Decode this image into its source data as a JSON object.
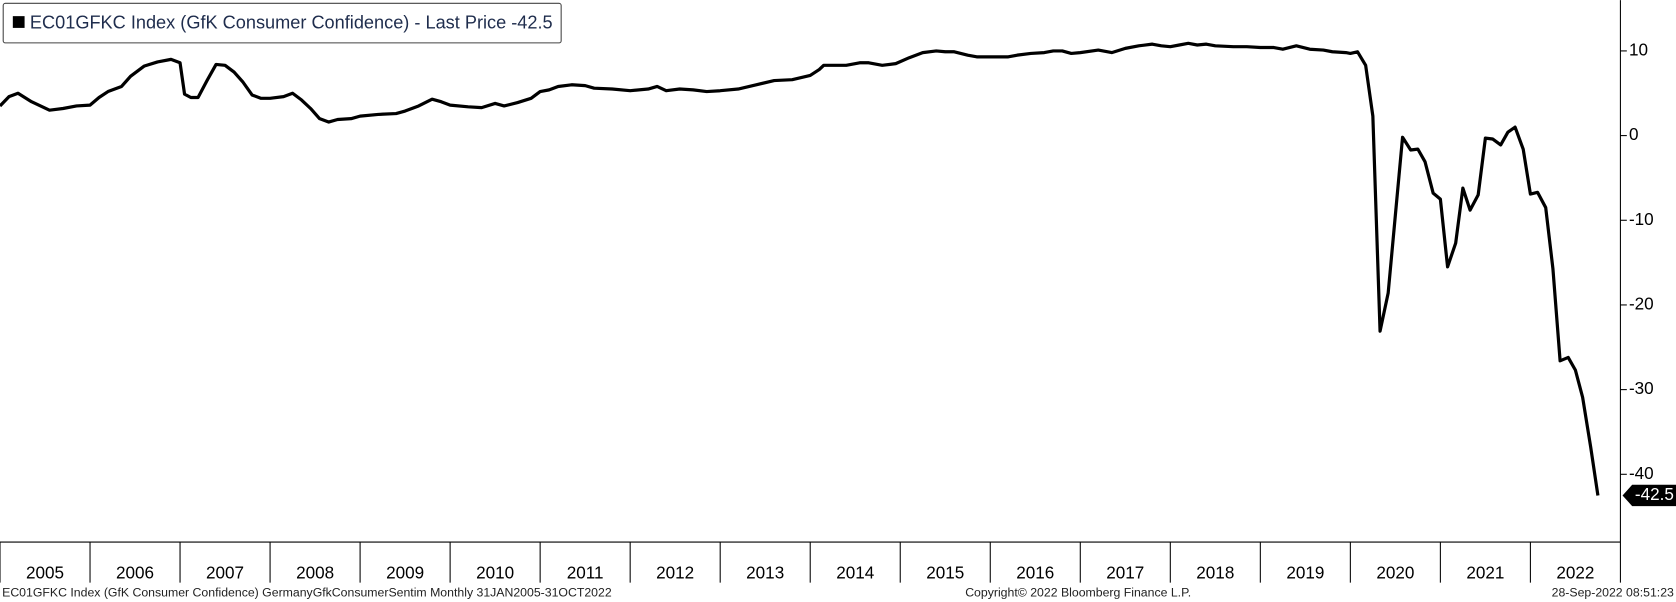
{
  "chart_data": {
    "type": "line",
    "series": [
      {
        "name": "EC01GFKC Index (GfK Consumer Confidence) - Last Price -42.5",
        "color": "#000000",
        "x": [
          2005.0,
          2005.1,
          2005.2,
          2005.35,
          2005.55,
          2005.7,
          2005.85,
          2006.0,
          2006.1,
          2006.2,
          2006.35,
          2006.45,
          2006.6,
          2006.75,
          2006.9,
          2007.0,
          2007.05,
          2007.12,
          2007.2,
          2007.3,
          2007.4,
          2007.5,
          2007.6,
          2007.7,
          2007.8,
          2007.9,
          2008.0,
          2008.15,
          2008.25,
          2008.35,
          2008.45,
          2008.55,
          2008.65,
          2008.75,
          2008.9,
          2009.0,
          2009.2,
          2009.4,
          2009.5,
          2009.65,
          2009.8,
          2009.9,
          2010.0,
          2010.2,
          2010.35,
          2010.5,
          2010.6,
          2010.75,
          2010.9,
          2011.0,
          2011.1,
          2011.2,
          2011.35,
          2011.5,
          2011.6,
          2011.8,
          2012.0,
          2012.2,
          2012.3,
          2012.4,
          2012.55,
          2012.7,
          2012.85,
          2013.0,
          2013.2,
          2013.4,
          2013.6,
          2013.8,
          2014.0,
          2014.1,
          2014.15,
          2014.4,
          2014.55,
          2014.65,
          2014.8,
          2014.95,
          2015.1,
          2015.25,
          2015.4,
          2015.5,
          2015.6,
          2015.75,
          2015.85,
          2016.0,
          2016.2,
          2016.3,
          2016.45,
          2016.6,
          2016.7,
          2016.8,
          2016.9,
          2017.0,
          2017.2,
          2017.35,
          2017.5,
          2017.65,
          2017.8,
          2017.9,
          2018.0,
          2018.1,
          2018.2,
          2018.3,
          2018.4,
          2018.5,
          2018.7,
          2018.85,
          2019.0,
          2019.15,
          2019.25,
          2019.4,
          2019.55,
          2019.7,
          2019.8,
          2019.95,
          2020.0,
          2020.08,
          2020.17,
          2020.25,
          2020.33,
          2020.42,
          2020.5,
          2020.58,
          2020.67,
          2020.75,
          2020.83,
          2020.92,
          2021.0,
          2021.08,
          2021.17,
          2021.25,
          2021.33,
          2021.42,
          2021.5,
          2021.58,
          2021.67,
          2021.75,
          2021.83,
          2021.92,
          2022.0,
          2022.08,
          2022.17,
          2022.25,
          2022.33,
          2022.42,
          2022.5,
          2022.58,
          2022.67,
          2022.75
        ],
        "values": [
          3.5,
          4.6,
          5.0,
          4.0,
          3.0,
          3.2,
          3.5,
          3.6,
          4.5,
          5.2,
          5.8,
          7.0,
          8.2,
          8.7,
          9.0,
          8.6,
          4.9,
          4.5,
          4.5,
          6.5,
          8.4,
          8.3,
          7.5,
          6.3,
          4.8,
          4.4,
          4.4,
          4.6,
          5.0,
          4.2,
          3.2,
          2.0,
          1.6,
          1.9,
          2.0,
          2.3,
          2.5,
          2.6,
          2.9,
          3.5,
          4.3,
          4.0,
          3.6,
          3.4,
          3.3,
          3.8,
          3.5,
          3.9,
          4.4,
          5.2,
          5.4,
          5.8,
          6.0,
          5.9,
          5.6,
          5.5,
          5.3,
          5.5,
          5.8,
          5.3,
          5.5,
          5.4,
          5.2,
          5.3,
          5.5,
          6.0,
          6.5,
          6.6,
          7.1,
          7.8,
          8.3,
          8.3,
          8.6,
          8.6,
          8.3,
          8.5,
          9.2,
          9.8,
          10.0,
          9.9,
          9.9,
          9.5,
          9.3,
          9.3,
          9.3,
          9.5,
          9.7,
          9.8,
          10.0,
          10.0,
          9.7,
          9.8,
          10.1,
          9.8,
          10.3,
          10.6,
          10.8,
          10.6,
          10.5,
          10.7,
          10.9,
          10.7,
          10.8,
          10.6,
          10.5,
          10.5,
          10.4,
          10.4,
          10.2,
          10.6,
          10.2,
          10.1,
          9.9,
          9.8,
          9.7,
          9.9,
          8.3,
          2.3,
          -23.1,
          -18.6,
          -9.4,
          -0.2,
          -1.7,
          -1.6,
          -3.1,
          -6.8,
          -7.5,
          -15.5,
          -12.7,
          -6.2,
          -8.8,
          -7.0,
          -0.3,
          -0.4,
          -1.1,
          0.4,
          1.0,
          -1.6,
          -6.9,
          -6.7,
          -8.5,
          -15.7,
          -26.6,
          -26.2,
          -27.7,
          -30.9,
          -36.8,
          -42.5
        ]
      }
    ],
    "xlim": [
      2005,
      2023
    ],
    "xticks": [
      2005,
      2006,
      2007,
      2008,
      2009,
      2010,
      2011,
      2012,
      2013,
      2014,
      2015,
      2016,
      2017,
      2018,
      2019,
      2020,
      2021,
      2022
    ],
    "ylim": [
      -48,
      16
    ],
    "yticks": [
      -40,
      -30,
      -20,
      -10,
      0,
      10
    ],
    "footer_left": "EC01GFKC Index (GfK Consumer Confidence) GermanyGfkConsumerSentim  Monthly 31JAN2005-31OCT2022",
    "footer_center": "Copyright© 2022 Bloomberg Finance L.P.",
    "footer_right": "28-Sep-2022 08:51:23"
  }
}
